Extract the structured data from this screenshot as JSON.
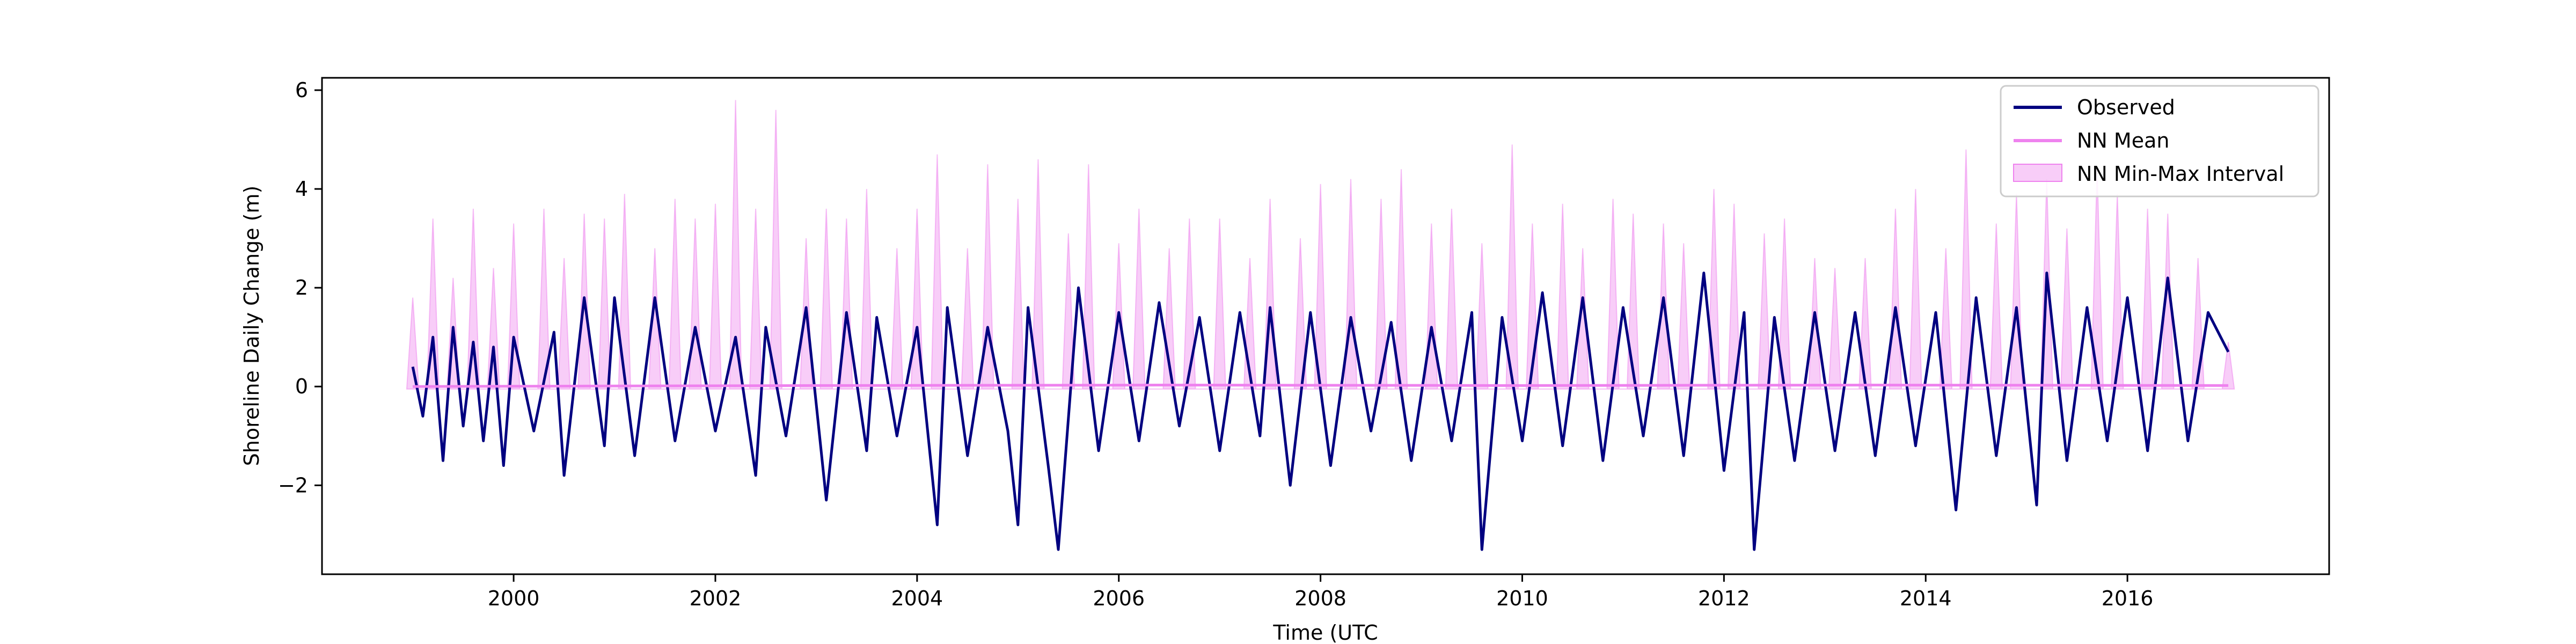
{
  "chart_data": {
    "type": "line",
    "title": "",
    "xlabel": "Time (UTC",
    "ylabel": "Shoreline Daily Change (m)",
    "xlim": [
      1998.1,
      2018.0
    ],
    "ylim": [
      -3.8,
      6.25
    ],
    "xticks": [
      {
        "value": 2000,
        "label": "2000"
      },
      {
        "value": 2002,
        "label": "2002"
      },
      {
        "value": 2004,
        "label": "2004"
      },
      {
        "value": 2006,
        "label": "2006"
      },
      {
        "value": 2008,
        "label": "2008"
      },
      {
        "value": 2010,
        "label": "2010"
      },
      {
        "value": 2012,
        "label": "2012"
      },
      {
        "value": 2014,
        "label": "2014"
      },
      {
        "value": 2016,
        "label": "2016"
      }
    ],
    "yticks": [
      {
        "value": -2,
        "label": "−2"
      },
      {
        "value": 0,
        "label": "0"
      },
      {
        "value": 2,
        "label": "2"
      },
      {
        "value": 4,
        "label": "4"
      },
      {
        "value": 6,
        "label": "6"
      }
    ],
    "grid": false,
    "legend_position": "top-right",
    "colors": {
      "observed": "#000080",
      "nn_mean": "#ee82ee",
      "nn_interval": "#ee82ee"
    },
    "series": [
      {
        "name": "Observed",
        "kind": "line",
        "x": [
          1999.0,
          1999.1,
          1999.2,
          1999.3,
          1999.4,
          1999.5,
          1999.6,
          1999.7,
          1999.8,
          1999.9,
          2000.0,
          2000.2,
          2000.4,
          2000.5,
          2000.7,
          2000.9,
          2001.0,
          2001.2,
          2001.4,
          2001.6,
          2001.8,
          2002.0,
          2002.2,
          2002.4,
          2002.5,
          2002.7,
          2002.9,
          2003.1,
          2003.3,
          2003.5,
          2003.6,
          2003.8,
          2004.0,
          2004.2,
          2004.3,
          2004.5,
          2004.7,
          2004.9,
          2005.0,
          2005.1,
          2005.3,
          2005.4,
          2005.6,
          2005.8,
          2006.0,
          2006.2,
          2006.4,
          2006.6,
          2006.8,
          2007.0,
          2007.2,
          2007.4,
          2007.5,
          2007.7,
          2007.9,
          2008.1,
          2008.3,
          2008.5,
          2008.7,
          2008.9,
          2009.1,
          2009.3,
          2009.5,
          2009.6,
          2009.8,
          2010.0,
          2010.2,
          2010.4,
          2010.6,
          2010.8,
          2011.0,
          2011.2,
          2011.4,
          2011.6,
          2011.8,
          2012.0,
          2012.2,
          2012.3,
          2012.5,
          2012.7,
          2012.9,
          2013.1,
          2013.3,
          2013.5,
          2013.7,
          2013.9,
          2014.1,
          2014.3,
          2014.5,
          2014.7,
          2014.9,
          2015.1,
          2015.2,
          2015.4,
          2015.6,
          2015.8,
          2016.0,
          2016.2,
          2016.4,
          2016.6,
          2016.8,
          2017.0
        ],
        "y": [
          0.4,
          -0.6,
          1.0,
          -1.5,
          1.2,
          -0.8,
          0.9,
          -1.1,
          0.8,
          -1.6,
          1.0,
          -0.9,
          1.1,
          -1.8,
          1.8,
          -1.2,
          1.8,
          -1.4,
          1.8,
          -1.1,
          1.2,
          -0.9,
          1.0,
          -1.8,
          1.2,
          -1.0,
          1.6,
          -2.3,
          1.5,
          -1.3,
          1.4,
          -1.0,
          1.2,
          -2.8,
          1.6,
          -1.4,
          1.2,
          -0.9,
          -2.8,
          1.6,
          -1.6,
          -3.3,
          2.0,
          -1.3,
          1.5,
          -1.1,
          1.7,
          -0.8,
          1.4,
          -1.3,
          1.5,
          -1.0,
          1.6,
          -2.0,
          1.5,
          -1.6,
          1.4,
          -0.9,
          1.3,
          -1.5,
          1.2,
          -1.1,
          1.5,
          -3.3,
          1.4,
          -1.1,
          1.9,
          -1.2,
          1.8,
          -1.5,
          1.6,
          -1.0,
          1.8,
          -1.4,
          2.3,
          -1.7,
          1.5,
          -3.3,
          1.4,
          -1.5,
          1.5,
          -1.3,
          1.5,
          -1.4,
          1.6,
          -1.2,
          1.5,
          -2.5,
          1.8,
          -1.4,
          1.6,
          -2.4,
          2.3,
          -1.5,
          1.6,
          -1.1,
          1.8,
          -1.3,
          2.2,
          -1.1,
          1.5,
          0.7
        ]
      },
      {
        "name": "NN Mean",
        "kind": "line",
        "x": [
          1999.0,
          2003.0,
          2006.5,
          2010.0,
          2013.5,
          2017.0
        ],
        "y": [
          0.0,
          0.02,
          0.03,
          0.02,
          0.03,
          0.02
        ]
      },
      {
        "name": "NN Min-Max Interval",
        "kind": "band",
        "x": [
          1999.0,
          1999.2,
          1999.4,
          1999.6,
          1999.8,
          2000.0,
          2000.3,
          2000.5,
          2000.7,
          2000.9,
          2001.1,
          2001.4,
          2001.6,
          2001.8,
          2002.0,
          2002.2,
          2002.4,
          2002.6,
          2002.9,
          2003.1,
          2003.3,
          2003.5,
          2003.8,
          2004.0,
          2004.2,
          2004.5,
          2004.7,
          2005.0,
          2005.2,
          2005.5,
          2005.7,
          2006.0,
          2006.2,
          2006.5,
          2006.7,
          2007.0,
          2007.3,
          2007.5,
          2007.8,
          2008.0,
          2008.3,
          2008.6,
          2008.8,
          2009.1,
          2009.3,
          2009.6,
          2009.9,
          2010.1,
          2010.4,
          2010.6,
          2010.9,
          2011.1,
          2011.4,
          2011.6,
          2011.9,
          2012.1,
          2012.4,
          2012.6,
          2012.9,
          2013.1,
          2013.4,
          2013.7,
          2013.9,
          2014.2,
          2014.4,
          2014.7,
          2014.9,
          2015.2,
          2015.4,
          2015.7,
          2015.9,
          2016.2,
          2016.4,
          2016.7,
          2017.0
        ],
        "upper": [
          1.8,
          3.4,
          2.2,
          3.6,
          2.4,
          3.3,
          3.6,
          2.6,
          3.5,
          3.4,
          3.9,
          2.8,
          3.8,
          3.4,
          3.7,
          5.8,
          3.6,
          5.6,
          3.0,
          3.6,
          3.4,
          4.0,
          2.8,
          3.6,
          4.7,
          2.8,
          4.5,
          3.8,
          4.6,
          3.1,
          4.5,
          2.9,
          3.6,
          2.8,
          3.4,
          3.4,
          2.6,
          3.8,
          3.0,
          4.1,
          4.2,
          3.8,
          4.4,
          3.3,
          3.6,
          2.9,
          4.9,
          3.3,
          3.7,
          2.8,
          3.8,
          3.5,
          3.3,
          2.9,
          4.0,
          3.7,
          3.1,
          3.4,
          2.6,
          2.4,
          2.6,
          3.6,
          4.0,
          2.8,
          4.8,
          3.3,
          3.9,
          4.2,
          3.2,
          4.4,
          3.9,
          3.6,
          3.5,
          2.6,
          0.9
        ],
        "lower": [
          -0.05,
          -0.05,
          -0.05,
          -0.05,
          -0.05,
          -0.05,
          -0.05,
          -0.05,
          -0.05,
          -0.05,
          -0.05,
          -0.05,
          -0.05,
          -0.05,
          -0.05,
          -0.05,
          -0.05,
          -0.05,
          -0.05,
          -0.05,
          -0.05,
          -0.05,
          -0.05,
          -0.05,
          -0.05,
          -0.05,
          -0.05,
          -0.05,
          -0.05,
          -0.05,
          -0.05,
          -0.05,
          -0.05,
          -0.05,
          -0.05,
          -0.05,
          -0.05,
          -0.05,
          -0.05,
          -0.05,
          -0.05,
          -0.05,
          -0.05,
          -0.05,
          -0.05,
          -0.05,
          -0.05,
          -0.05,
          -0.05,
          -0.05,
          -0.05,
          -0.05,
          -0.05,
          -0.05,
          -0.05,
          -0.05,
          -0.05,
          -0.05,
          -0.05,
          -0.05,
          -0.05,
          -0.05,
          -0.05,
          -0.05,
          -0.05,
          -0.05,
          -0.05,
          -0.05,
          -0.05,
          -0.05,
          -0.05,
          -0.05,
          -0.05,
          -0.05,
          -0.05
        ]
      }
    ]
  }
}
